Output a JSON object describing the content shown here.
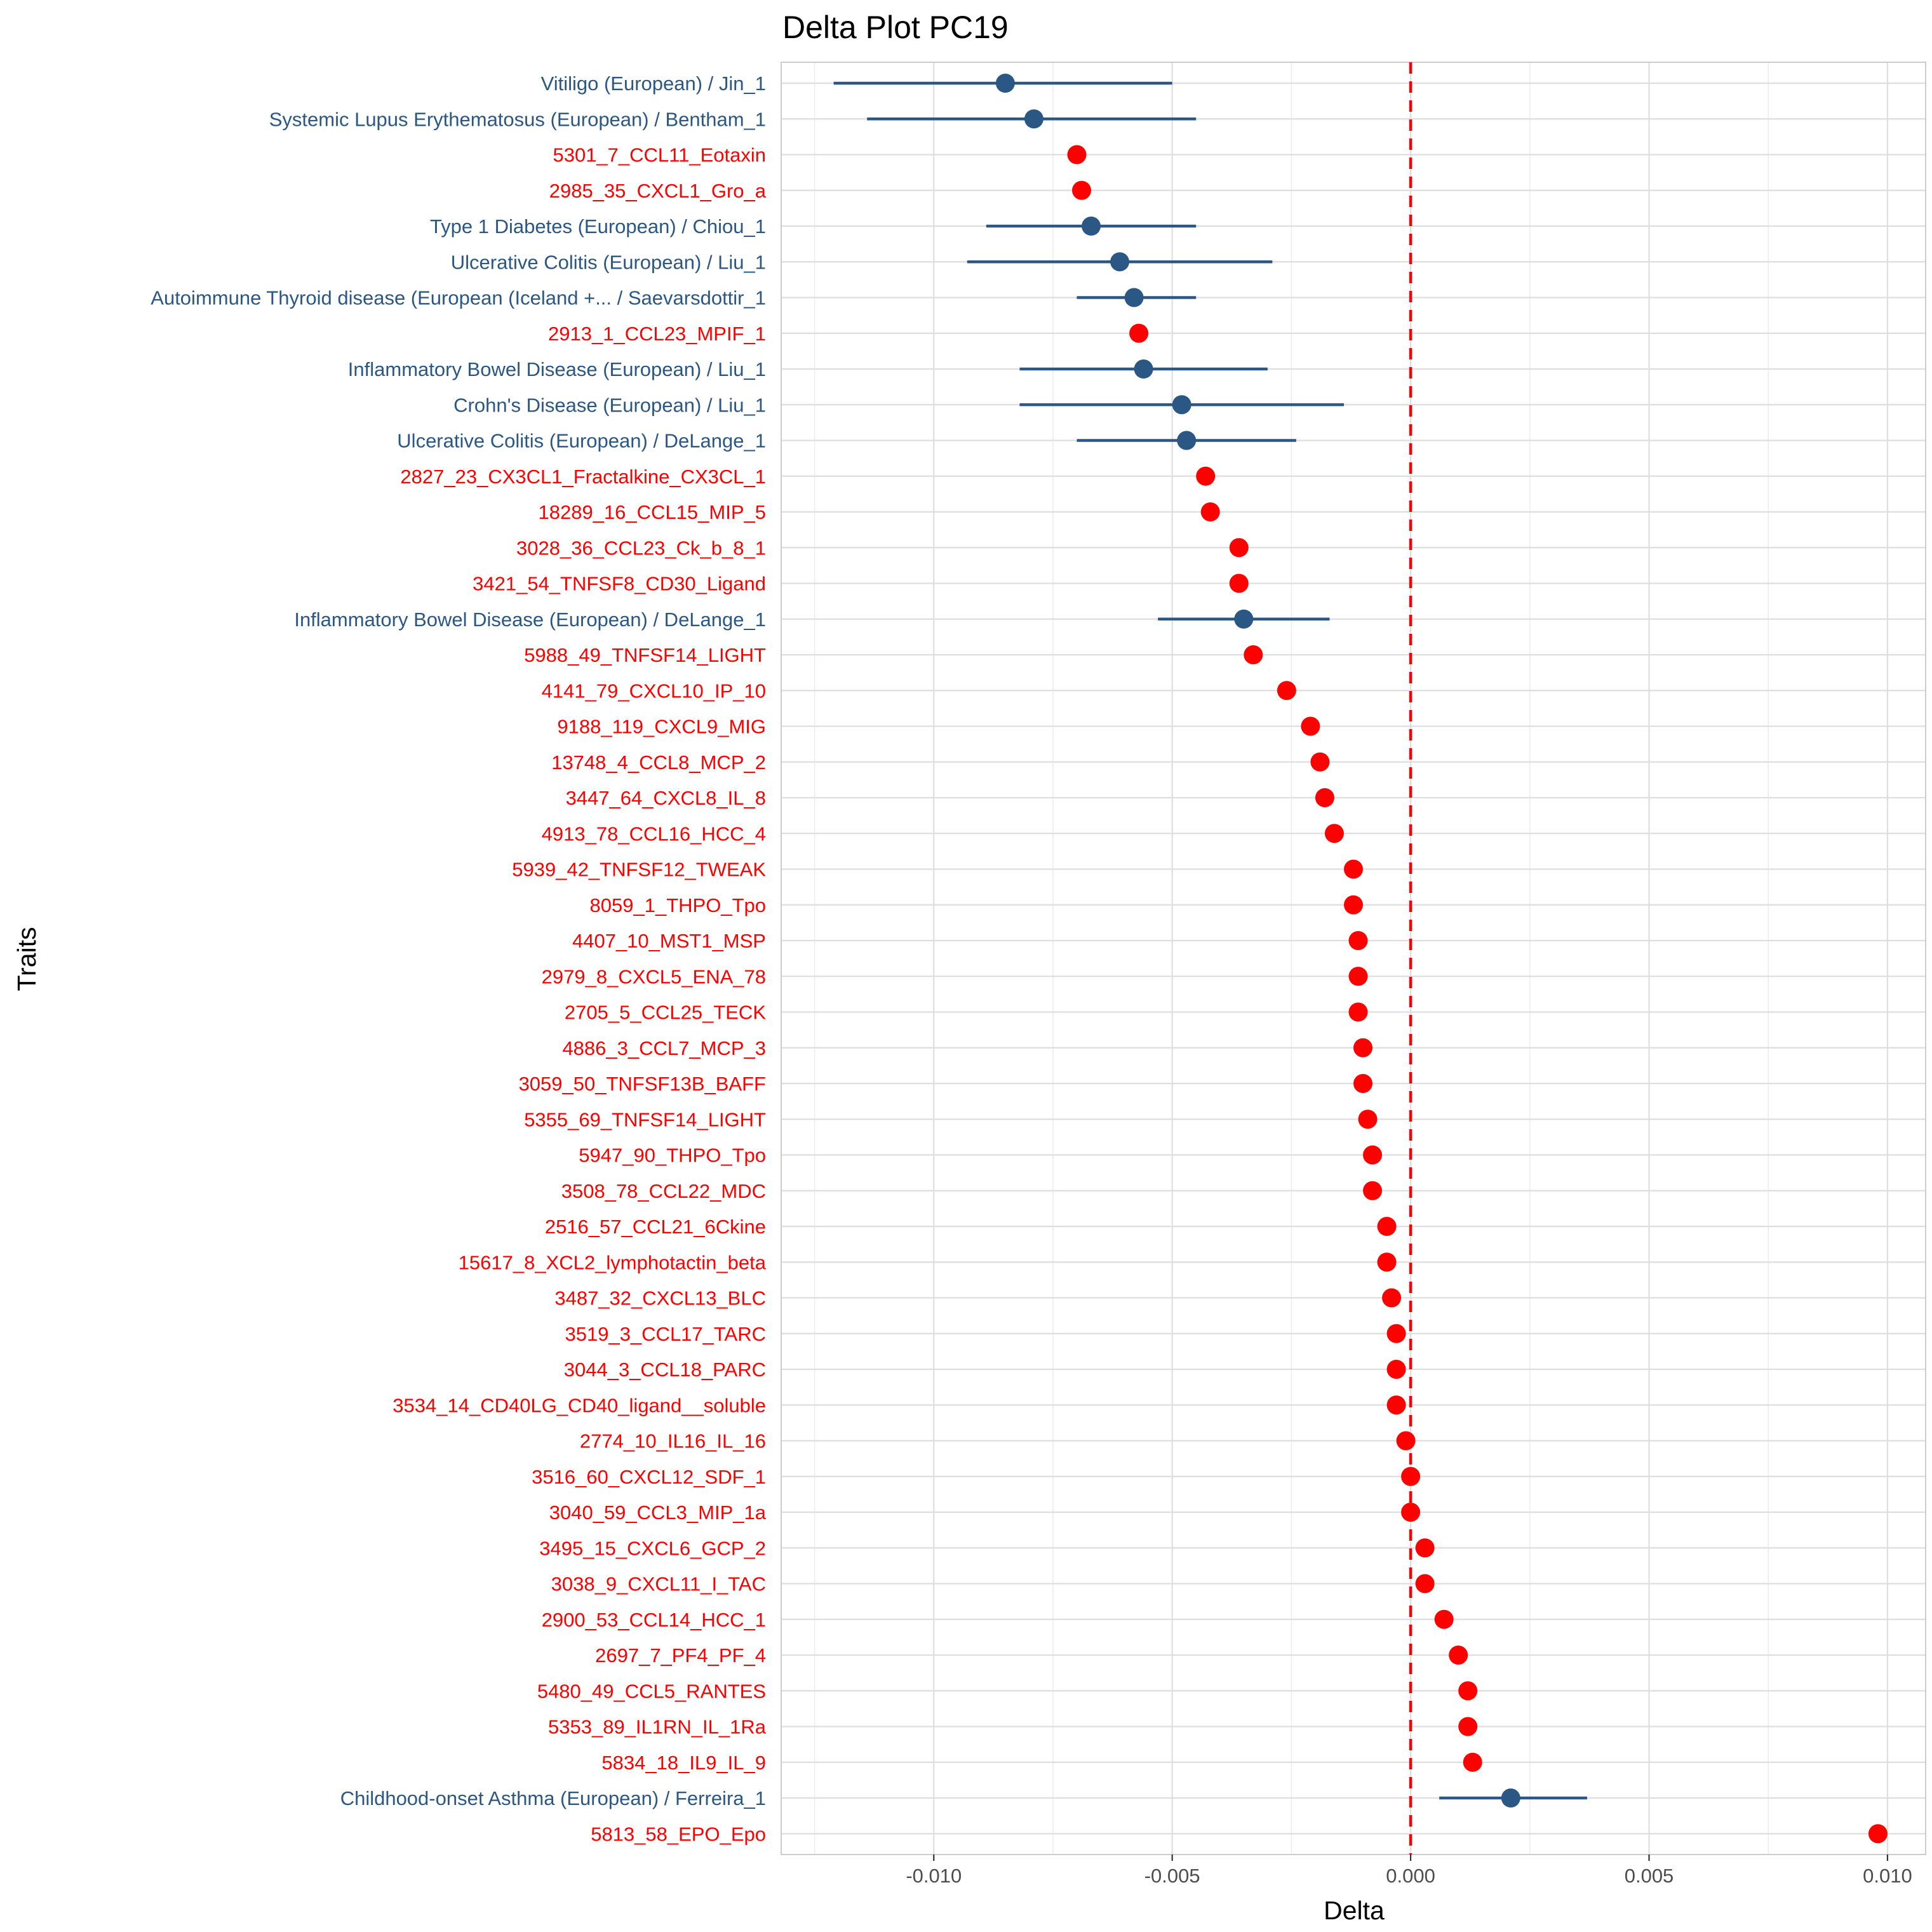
{
  "chart_data": {
    "type": "scatter",
    "title": "Delta Plot PC19",
    "xlabel": "Delta",
    "ylabel": "Traits",
    "xlim": [
      -0.0132,
      0.0108
    ],
    "xticks": [
      -0.01,
      -0.005,
      0.0,
      0.005,
      0.01
    ],
    "xtick_labels": [
      "-0.010",
      "-0.005",
      "0.000",
      "0.005",
      "0.010"
    ],
    "reference_line": {
      "x": 0.0,
      "style": "dashed",
      "color": "#ff0000"
    },
    "grid": true,
    "legend": "none",
    "colors": {
      "disease": "#2a5783",
      "protein": "#ff0000"
    },
    "series": [
      {
        "group": "disease",
        "points": [
          {
            "trait": "Vitiligo (European) / Jin_1",
            "delta": -0.0085,
            "ci_low": -0.0121,
            "ci_high": -0.005
          },
          {
            "trait": "Systemic Lupus Erythematosus (European) / Bentham_1",
            "delta": -0.0079,
            "ci_low": -0.0114,
            "ci_high": -0.0045
          },
          {
            "trait": "Type 1 Diabetes (European) / Chiou_1",
            "delta": -0.0067,
            "ci_low": -0.0089,
            "ci_high": -0.0045
          },
          {
            "trait": "Ulcerative Colitis (European) / Liu_1",
            "delta": -0.0061,
            "ci_low": -0.0093,
            "ci_high": -0.0029
          },
          {
            "trait": "Autoimmune Thyroid disease (European (Iceland +... / Saevarsdottir_1",
            "delta": -0.0058,
            "ci_low": -0.007,
            "ci_high": -0.0045
          },
          {
            "trait": "Inflammatory Bowel Disease (European) / Liu_1",
            "delta": -0.0056,
            "ci_low": -0.0082,
            "ci_high": -0.003
          },
          {
            "trait": "Crohn's Disease (European) / Liu_1",
            "delta": -0.0048,
            "ci_low": -0.0082,
            "ci_high": -0.0014
          },
          {
            "trait": "Ulcerative Colitis (European) / DeLange_1",
            "delta": -0.0047,
            "ci_low": -0.007,
            "ci_high": -0.0024
          },
          {
            "trait": "Inflammatory Bowel Disease (European) / DeLange_1",
            "delta": -0.0035,
            "ci_low": -0.0053,
            "ci_high": -0.0017
          },
          {
            "trait": "Childhood-onset Asthma (European) / Ferreira_1",
            "delta": 0.0021,
            "ci_low": 0.0006,
            "ci_high": 0.0037
          }
        ]
      },
      {
        "group": "protein",
        "points": [
          {
            "trait": "5301_7_CCL11_Eotaxin",
            "delta": -0.007
          },
          {
            "trait": "2985_35_CXCL1_Gro_a",
            "delta": -0.0069
          },
          {
            "trait": "2913_1_CCL23_MPIF_1",
            "delta": -0.0057
          },
          {
            "trait": "2827_23_CX3CL1_Fractalkine_CX3CL_1",
            "delta": -0.0043
          },
          {
            "trait": "18289_16_CCL15_MIP_5",
            "delta": -0.0042
          },
          {
            "trait": "3028_36_CCL23_Ck_b_8_1",
            "delta": -0.0036
          },
          {
            "trait": "3421_54_TNFSF8_CD30_Ligand",
            "delta": -0.0036
          },
          {
            "trait": "5988_49_TNFSF14_LIGHT",
            "delta": -0.0033
          },
          {
            "trait": "4141_79_CXCL10_IP_10",
            "delta": -0.0026
          },
          {
            "trait": "9188_119_CXCL9_MIG",
            "delta": -0.0021
          },
          {
            "trait": "13748_4_CCL8_MCP_2",
            "delta": -0.0019
          },
          {
            "trait": "3447_64_CXCL8_IL_8",
            "delta": -0.0018
          },
          {
            "trait": "4913_78_CCL16_HCC_4",
            "delta": -0.0016
          },
          {
            "trait": "5939_42_TNFSF12_TWEAK",
            "delta": -0.0012
          },
          {
            "trait": "8059_1_THPO_Tpo",
            "delta": -0.0012
          },
          {
            "trait": "4407_10_MST1_MSP",
            "delta": -0.0011
          },
          {
            "trait": "2979_8_CXCL5_ENA_78",
            "delta": -0.0011
          },
          {
            "trait": "2705_5_CCL25_TECK",
            "delta": -0.0011
          },
          {
            "trait": "4886_3_CCL7_MCP_3",
            "delta": -0.001
          },
          {
            "trait": "3059_50_TNFSF13B_BAFF",
            "delta": -0.001
          },
          {
            "trait": "5355_69_TNFSF14_LIGHT",
            "delta": -0.0009
          },
          {
            "trait": "5947_90_THPO_Tpo",
            "delta": -0.0008
          },
          {
            "trait": "3508_78_CCL22_MDC",
            "delta": -0.0008
          },
          {
            "trait": "2516_57_CCL21_6Ckine",
            "delta": -0.0005
          },
          {
            "trait": "15617_8_XCL2_lymphotactin_beta",
            "delta": -0.0005
          },
          {
            "trait": "3487_32_CXCL13_BLC",
            "delta": -0.0004
          },
          {
            "trait": "3519_3_CCL17_TARC",
            "delta": -0.0003
          },
          {
            "trait": "3044_3_CCL18_PARC",
            "delta": -0.0003
          },
          {
            "trait": "3534_14_CD40LG_CD40_ligand__soluble",
            "delta": -0.0003
          },
          {
            "trait": "2774_10_IL16_IL_16",
            "delta": -0.0001
          },
          {
            "trait": "3516_60_CXCL12_SDF_1",
            "delta": 0.0
          },
          {
            "trait": "3040_59_CCL3_MIP_1a",
            "delta": 0.0
          },
          {
            "trait": "3495_15_CXCL6_GCP_2",
            "delta": 0.0003
          },
          {
            "trait": "3038_9_CXCL11_I_TAC",
            "delta": 0.0003
          },
          {
            "trait": "2900_53_CCL14_HCC_1",
            "delta": 0.0007
          },
          {
            "trait": "2697_7_PF4_PF_4",
            "delta": 0.001
          },
          {
            "trait": "5480_49_CCL5_RANTES",
            "delta": 0.0012
          },
          {
            "trait": "5353_89_IL1RN_IL_1Ra",
            "delta": 0.0012
          },
          {
            "trait": "5834_18_IL9_IL_9",
            "delta": 0.0013
          },
          {
            "trait": "5813_58_EPO_Epo",
            "delta": 0.0098
          }
        ]
      }
    ],
    "order": [
      "Vitiligo (European) / Jin_1",
      "Systemic Lupus Erythematosus (European) / Bentham_1",
      "5301_7_CCL11_Eotaxin",
      "2985_35_CXCL1_Gro_a",
      "Type 1 Diabetes (European) / Chiou_1",
      "Ulcerative Colitis (European) / Liu_1",
      "Autoimmune Thyroid disease (European (Iceland +... / Saevarsdottir_1",
      "2913_1_CCL23_MPIF_1",
      "Inflammatory Bowel Disease (European) / Liu_1",
      "Crohn's Disease (European) / Liu_1",
      "Ulcerative Colitis (European) / DeLange_1",
      "2827_23_CX3CL1_Fractalkine_CX3CL_1",
      "18289_16_CCL15_MIP_5",
      "3028_36_CCL23_Ck_b_8_1",
      "3421_54_TNFSF8_CD30_Ligand",
      "Inflammatory Bowel Disease (European) / DeLange_1",
      "5988_49_TNFSF14_LIGHT",
      "4141_79_CXCL10_IP_10",
      "9188_119_CXCL9_MIG",
      "13748_4_CCL8_MCP_2",
      "3447_64_CXCL8_IL_8",
      "4913_78_CCL16_HCC_4",
      "5939_42_TNFSF12_TWEAK",
      "8059_1_THPO_Tpo",
      "4407_10_MST1_MSP",
      "2979_8_CXCL5_ENA_78",
      "2705_5_CCL25_TECK",
      "4886_3_CCL7_MCP_3",
      "3059_50_TNFSF13B_BAFF",
      "5355_69_TNFSF14_LIGHT",
      "5947_90_THPO_Tpo",
      "3508_78_CCL22_MDC",
      "2516_57_CCL21_6Ckine",
      "15617_8_XCL2_lymphotactin_beta",
      "3487_32_CXCL13_BLC",
      "3519_3_CCL17_TARC",
      "3044_3_CCL18_PARC",
      "3534_14_CD40LG_CD40_ligand__soluble",
      "2774_10_IL16_IL_16",
      "3516_60_CXCL12_SDF_1",
      "3040_59_CCL3_MIP_1a",
      "3495_15_CXCL6_GCP_2",
      "3038_9_CXCL11_I_TAC",
      "2900_53_CCL14_HCC_1",
      "2697_7_PF4_PF_4",
      "5480_49_CCL5_RANTES",
      "5353_89_IL1RN_IL_1Ra",
      "5834_18_IL9_IL_9",
      "Childhood-onset Asthma (European) / Ferreira_1",
      "5813_58_EPO_Epo"
    ]
  }
}
